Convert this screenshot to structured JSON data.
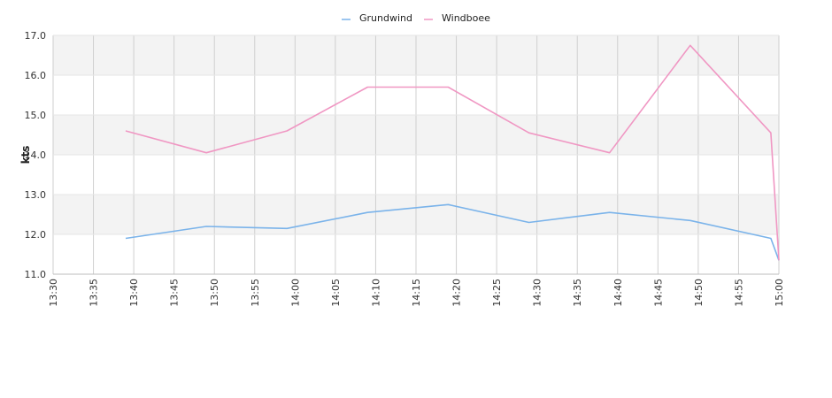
{
  "chart_data": {
    "type": "line",
    "title": "",
    "xlabel": "",
    "ylabel": "kts",
    "ylim": [
      11.0,
      17.0
    ],
    "xlim": [
      "13:30",
      "15:00"
    ],
    "x_ticks": [
      "13:30",
      "13:35",
      "13:40",
      "13:45",
      "13:50",
      "13:55",
      "14:00",
      "14:05",
      "14:10",
      "14:15",
      "14:20",
      "14:25",
      "14:30",
      "14:35",
      "14:40",
      "14:45",
      "14:50",
      "14:55",
      "15:00"
    ],
    "y_ticks": [
      "11.0",
      "12.0",
      "13.0",
      "14.0",
      "15.0",
      "16.0",
      "17.0"
    ],
    "legend_position": "top-center",
    "grid": true,
    "background_bands": true,
    "series": [
      {
        "name": "Grundwind",
        "color": "#7ab3ea",
        "points": [
          {
            "x": "13:39",
            "y": 11.9
          },
          {
            "x": "13:49",
            "y": 12.2
          },
          {
            "x": "13:59",
            "y": 12.15
          },
          {
            "x": "14:09",
            "y": 12.55
          },
          {
            "x": "14:19",
            "y": 12.75
          },
          {
            "x": "14:29",
            "y": 12.3
          },
          {
            "x": "14:39",
            "y": 12.55
          },
          {
            "x": "14:49",
            "y": 12.35
          },
          {
            "x": "14:59",
            "y": 11.9
          },
          {
            "x": "15:00",
            "y": 11.35
          }
        ]
      },
      {
        "name": "Windboee",
        "color": "#f097c3",
        "points": [
          {
            "x": "13:39",
            "y": 14.6
          },
          {
            "x": "13:49",
            "y": 14.05
          },
          {
            "x": "13:59",
            "y": 14.6
          },
          {
            "x": "14:09",
            "y": 15.7
          },
          {
            "x": "14:19",
            "y": 15.7
          },
          {
            "x": "14:29",
            "y": 14.55
          },
          {
            "x": "14:39",
            "y": 14.05
          },
          {
            "x": "14:49",
            "y": 16.75
          },
          {
            "x": "14:59",
            "y": 14.55
          },
          {
            "x": "15:00",
            "y": 11.35
          }
        ]
      }
    ]
  }
}
